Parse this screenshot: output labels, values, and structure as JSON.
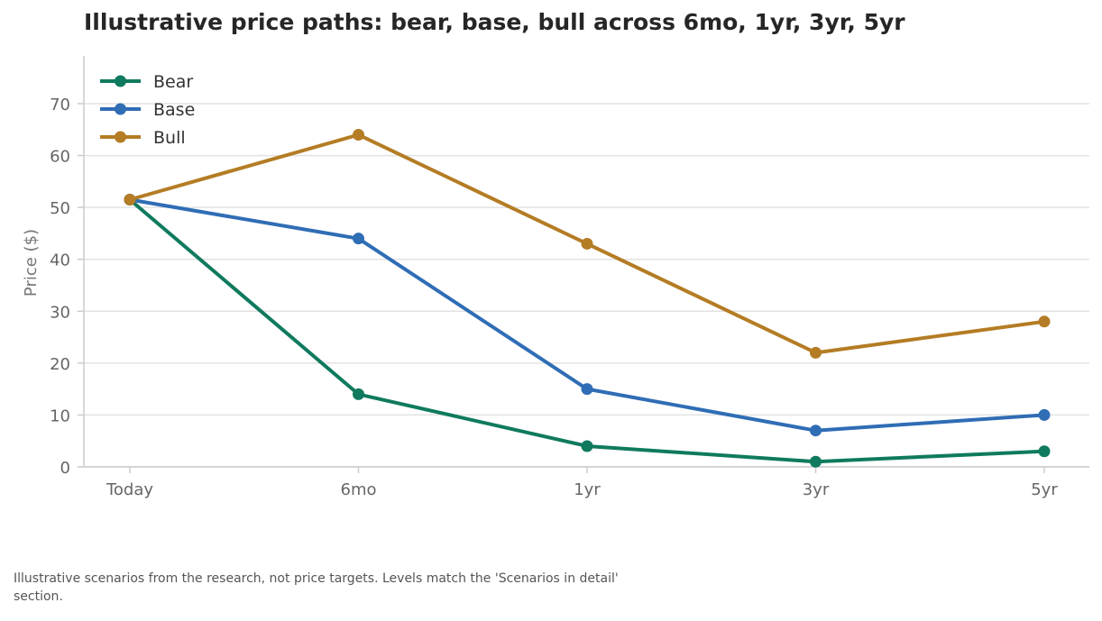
{
  "chart_data": {
    "type": "line",
    "title": "Illustrative price paths: bear, base, bull across 6mo, 1yr, 3yr, 5yr",
    "xlabel": "",
    "ylabel": "Price ($)",
    "categories": [
      "Today",
      "6mo",
      "1yr",
      "3yr",
      "5yr"
    ],
    "ylim": [
      0,
      70
    ],
    "yticks": [
      0,
      10,
      20,
      30,
      40,
      50,
      60,
      70
    ],
    "grid": true,
    "legend": "top-left",
    "series": [
      {
        "name": "Bear",
        "color": "#0f7a5e",
        "values": [
          51.5,
          14,
          4,
          1,
          3
        ]
      },
      {
        "name": "Base",
        "color": "#2f6db5",
        "values": [
          51.5,
          44,
          15,
          7,
          10
        ]
      },
      {
        "name": "Bull",
        "color": "#b47c24",
        "values": [
          51.5,
          64,
          43,
          22,
          28
        ]
      }
    ]
  },
  "footnote": "Illustrative scenarios from the research, not price targets. Levels match the 'Scenarios in detail' section."
}
